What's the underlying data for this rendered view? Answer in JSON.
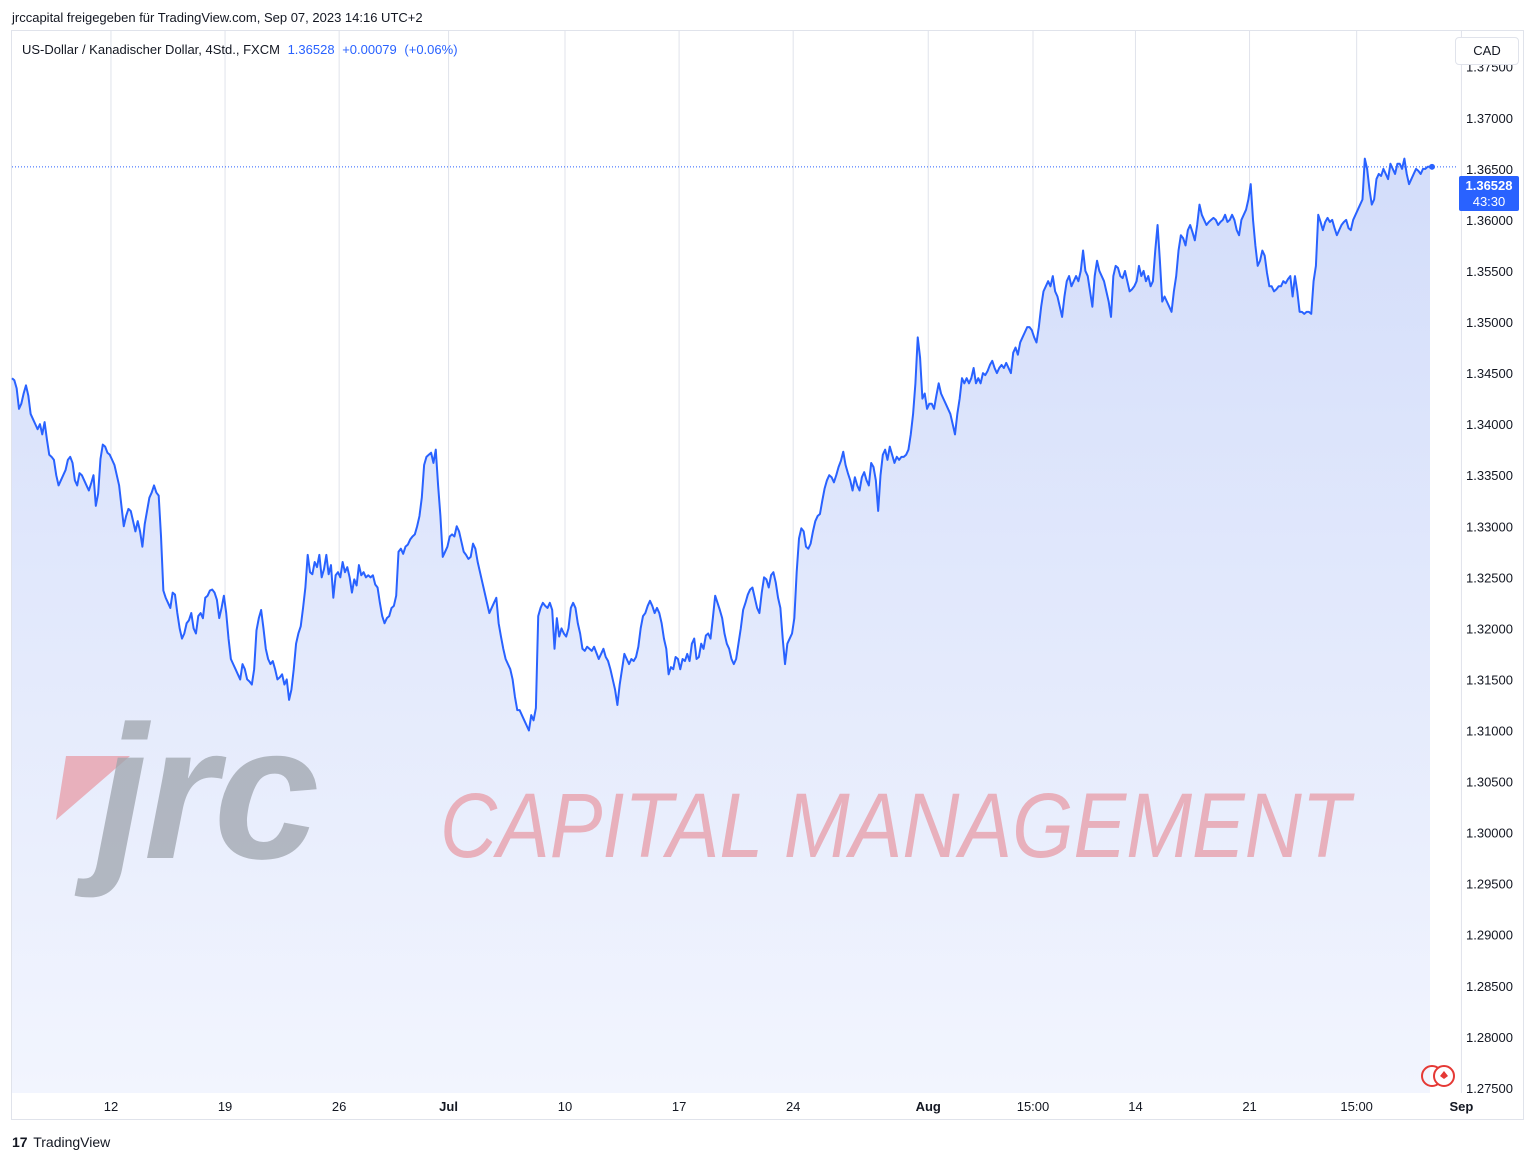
{
  "header": {
    "publish_line": "jrccapital freigegeben für TradingView.com, Sep 07, 2023 14:16 UTC+2"
  },
  "legend": {
    "symbol": "US-Dollar / Kanadischer Dollar, 4Std., FXCM",
    "last": "1.36528",
    "change": "+0.00079",
    "change_pct": "(+0.06%)"
  },
  "currency_button": "CAD",
  "price_tag": {
    "price": "1.36528",
    "countdown": "43:30"
  },
  "watermark": {
    "brand": "jrc",
    "tagline": "CAPITAL MANAGEMENT"
  },
  "footer": {
    "brand": "TradingView",
    "logo_glyph": "17"
  },
  "colors": {
    "line": "#2962ff",
    "area_top": "#d6e0fb",
    "area_bottom": "#f3f6fe",
    "grid": "#e0e3eb",
    "watermark_gray": "#9aa0a8",
    "watermark_red": "#e8a0ac"
  },
  "chart_data": {
    "type": "area",
    "title": "US-Dollar / Kanadischer Dollar, 4Std., FXCM",
    "ylabel": "CAD",
    "ylim": [
      1.2745,
      1.3785
    ],
    "y_ticks": [
      "1.37500",
      "1.37000",
      "1.36500",
      "1.36000",
      "1.35500",
      "1.35000",
      "1.34500",
      "1.34000",
      "1.33500",
      "1.33000",
      "1.32500",
      "1.32000",
      "1.31500",
      "1.31000",
      "1.30500",
      "1.30000",
      "1.29500",
      "1.29000",
      "1.28500",
      "1.28000",
      "1.27500"
    ],
    "x_ticks": [
      {
        "label": "12",
        "bold": false,
        "i": 42.5
      },
      {
        "label": "19",
        "bold": false,
        "i": 91.5
      },
      {
        "label": "26",
        "bold": false,
        "i": 140.5
      },
      {
        "label": "Jul",
        "bold": true,
        "i": 187.5
      },
      {
        "label": "10",
        "bold": false,
        "i": 237.5
      },
      {
        "label": "17",
        "bold": false,
        "i": 286.5
      },
      {
        "label": "24",
        "bold": false,
        "i": 335.5
      },
      {
        "label": "Aug",
        "bold": true,
        "i": 393.5
      },
      {
        "label": "15:00",
        "bold": false,
        "i": 438.5
      },
      {
        "label": "14",
        "bold": false,
        "i": 482.5
      },
      {
        "label": "21",
        "bold": false,
        "i": 531.5
      },
      {
        "label": "15:00",
        "bold": false,
        "i": 577.5
      },
      {
        "label": "Sep",
        "bold": true,
        "i": 622.5
      }
    ],
    "grid": true,
    "series": [
      {
        "values": [
          1.3445,
          1.3443,
          1.3435,
          1.3415,
          1.342,
          1.343,
          1.3438,
          1.3428,
          1.341,
          1.3405,
          1.34,
          1.3395,
          1.34,
          1.339,
          1.3402,
          1.3385,
          1.337,
          1.3368,
          1.3365,
          1.335,
          1.334,
          1.3345,
          1.335,
          1.3355,
          1.3365,
          1.3368,
          1.3362,
          1.3345,
          1.334,
          1.3352,
          1.335,
          1.3345,
          1.334,
          1.3335,
          1.3342,
          1.335,
          1.332,
          1.3332,
          1.3366,
          1.338,
          1.3378,
          1.3372,
          1.337,
          1.3365,
          1.336,
          1.335,
          1.334,
          1.332,
          1.33,
          1.331,
          1.3317,
          1.3315,
          1.3305,
          1.3295,
          1.3305,
          1.3295,
          1.328,
          1.3302,
          1.3315,
          1.3328,
          1.3333,
          1.334,
          1.3333,
          1.333,
          1.329,
          1.3237,
          1.323,
          1.3225,
          1.322,
          1.3235,
          1.3233,
          1.3215,
          1.32,
          1.319,
          1.3195,
          1.3205,
          1.3208,
          1.3215,
          1.32,
          1.3195,
          1.3212,
          1.3215,
          1.321,
          1.323,
          1.3232,
          1.3237,
          1.3238,
          1.3235,
          1.3228,
          1.321,
          1.322,
          1.3232,
          1.3215,
          1.319,
          1.317,
          1.3165,
          1.316,
          1.3155,
          1.315,
          1.3165,
          1.316,
          1.315,
          1.3148,
          1.3145,
          1.316,
          1.3198,
          1.321,
          1.3218,
          1.32,
          1.318,
          1.317,
          1.3165,
          1.3168,
          1.316,
          1.315,
          1.3152,
          1.3155,
          1.3145,
          1.315,
          1.313,
          1.314,
          1.316,
          1.3185,
          1.3195,
          1.3202,
          1.322,
          1.324,
          1.3272,
          1.3255,
          1.3253,
          1.3265,
          1.326,
          1.3272,
          1.325,
          1.3258,
          1.3272,
          1.3253,
          1.3262,
          1.323,
          1.3252,
          1.3255,
          1.325,
          1.3265,
          1.3255,
          1.326,
          1.325,
          1.3235,
          1.3248,
          1.3242,
          1.3262,
          1.3252,
          1.3255,
          1.325,
          1.3252,
          1.325,
          1.3252,
          1.3243,
          1.324,
          1.3225,
          1.3212,
          1.3205,
          1.321,
          1.3212,
          1.322,
          1.3222,
          1.3232,
          1.3275,
          1.3278,
          1.3273,
          1.328,
          1.3282,
          1.3287,
          1.329,
          1.3292,
          1.33,
          1.331,
          1.3328,
          1.336,
          1.3368,
          1.337,
          1.3372,
          1.3362,
          1.3375,
          1.334,
          1.331,
          1.327,
          1.3275,
          1.328,
          1.329,
          1.3292,
          1.329,
          1.33,
          1.3295,
          1.3285,
          1.3275,
          1.3272,
          1.3268,
          1.327,
          1.3283,
          1.3278,
          1.3265,
          1.3255,
          1.3245,
          1.3235,
          1.3225,
          1.3215,
          1.322,
          1.3225,
          1.323,
          1.3205,
          1.3192,
          1.318,
          1.317,
          1.3165,
          1.316,
          1.315,
          1.3133,
          1.312,
          1.312,
          1.3115,
          1.311,
          1.3105,
          1.31,
          1.3115,
          1.311,
          1.3122,
          1.3212,
          1.322,
          1.3225,
          1.3222,
          1.322,
          1.3225,
          1.3218,
          1.318,
          1.321,
          1.3192,
          1.32,
          1.3195,
          1.3192,
          1.32,
          1.322,
          1.3225,
          1.322,
          1.3205,
          1.3195,
          1.318,
          1.3178,
          1.3182,
          1.318,
          1.3178,
          1.3182,
          1.3176,
          1.317,
          1.3175,
          1.318,
          1.3172,
          1.3168,
          1.316,
          1.315,
          1.314,
          1.3125,
          1.3145,
          1.316,
          1.3175,
          1.317,
          1.3165,
          1.317,
          1.3168,
          1.3172,
          1.3182,
          1.32,
          1.3212,
          1.3215,
          1.3222,
          1.3227,
          1.3222,
          1.3215,
          1.322,
          1.3215,
          1.3205,
          1.319,
          1.318,
          1.3155,
          1.3162,
          1.316,
          1.3172,
          1.317,
          1.316,
          1.317,
          1.3168,
          1.3175,
          1.3168,
          1.3185,
          1.319,
          1.317,
          1.3172,
          1.3185,
          1.318,
          1.3193,
          1.3195,
          1.319,
          1.321,
          1.3232,
          1.3225,
          1.3218,
          1.321,
          1.3195,
          1.3185,
          1.318,
          1.317,
          1.3165,
          1.317,
          1.3185,
          1.32,
          1.3218,
          1.3225,
          1.3233,
          1.3238,
          1.324,
          1.323,
          1.322,
          1.3215,
          1.3235,
          1.325,
          1.3248,
          1.324,
          1.3252,
          1.3255,
          1.3245,
          1.323,
          1.322,
          1.319,
          1.3165,
          1.3185,
          1.319,
          1.3195,
          1.321,
          1.3255,
          1.3288,
          1.3298,
          1.3295,
          1.328,
          1.3278,
          1.3283,
          1.3295,
          1.3305,
          1.331,
          1.3312,
          1.3325,
          1.3337,
          1.3345,
          1.335,
          1.3348,
          1.3343,
          1.335,
          1.3358,
          1.3364,
          1.3373,
          1.336,
          1.3352,
          1.3345,
          1.3335,
          1.3348,
          1.334,
          1.3335,
          1.3348,
          1.3353,
          1.3345,
          1.334,
          1.3362,
          1.3358,
          1.3345,
          1.3315,
          1.335,
          1.337,
          1.3375,
          1.3365,
          1.3378,
          1.337,
          1.3362,
          1.3368,
          1.3365,
          1.3368,
          1.3368,
          1.337,
          1.3375,
          1.339,
          1.341,
          1.344,
          1.3485,
          1.3465,
          1.3425,
          1.343,
          1.3415,
          1.342,
          1.342,
          1.3415,
          1.3428,
          1.344,
          1.343,
          1.3425,
          1.342,
          1.3415,
          1.341,
          1.34,
          1.339,
          1.341,
          1.3425,
          1.3445,
          1.344,
          1.3445,
          1.344,
          1.3445,
          1.3455,
          1.344,
          1.3445,
          1.344,
          1.345,
          1.3448,
          1.3452,
          1.3458,
          1.3462,
          1.3455,
          1.345,
          1.3455,
          1.3458,
          1.3455,
          1.346,
          1.3455,
          1.345,
          1.347,
          1.3475,
          1.3468,
          1.348,
          1.3485,
          1.349,
          1.3495,
          1.3495,
          1.3492,
          1.3485,
          1.348,
          1.3495,
          1.3515,
          1.353,
          1.3535,
          1.354,
          1.3535,
          1.3545,
          1.353,
          1.3525,
          1.3515,
          1.3505,
          1.3525,
          1.354,
          1.3545,
          1.3535,
          1.354,
          1.3545,
          1.354,
          1.355,
          1.357,
          1.355,
          1.3545,
          1.353,
          1.3515,
          1.3545,
          1.356,
          1.355,
          1.3545,
          1.354,
          1.353,
          1.352,
          1.3505,
          1.3545,
          1.3555,
          1.3553,
          1.3545,
          1.3543,
          1.355,
          1.354,
          1.353,
          1.3532,
          1.3535,
          1.354,
          1.3555,
          1.3545,
          1.355,
          1.354,
          1.3545,
          1.3535,
          1.354,
          1.357,
          1.3595,
          1.356,
          1.352,
          1.3525,
          1.352,
          1.3515,
          1.351,
          1.353,
          1.3545,
          1.357,
          1.3585,
          1.3582,
          1.3575,
          1.359,
          1.3595,
          1.3588,
          1.358,
          1.3595,
          1.3615,
          1.3605,
          1.36,
          1.3595,
          1.3598,
          1.36,
          1.3602,
          1.36,
          1.3595,
          1.3598,
          1.36,
          1.3605,
          1.3598,
          1.36,
          1.3605,
          1.36,
          1.359,
          1.3585,
          1.36,
          1.3605,
          1.361,
          1.362,
          1.3635,
          1.36,
          1.3575,
          1.3555,
          1.356,
          1.357,
          1.3565,
          1.3548,
          1.3535,
          1.3535,
          1.353,
          1.3532,
          1.3535,
          1.3535,
          1.354,
          1.3538,
          1.3542,
          1.3545,
          1.3525,
          1.3545,
          1.353,
          1.351,
          1.351,
          1.3508,
          1.351,
          1.351,
          1.3508,
          1.354,
          1.3555,
          1.3605,
          1.3598,
          1.359,
          1.3598,
          1.3602,
          1.3598,
          1.36,
          1.3592,
          1.3585,
          1.359,
          1.3595,
          1.3598,
          1.36,
          1.3592,
          1.359,
          1.36,
          1.3605,
          1.361,
          1.3615,
          1.362,
          1.366,
          1.365,
          1.363,
          1.3615,
          1.362,
          1.364,
          1.3645,
          1.3643,
          1.365,
          1.3645,
          1.364,
          1.3655,
          1.365,
          1.3645,
          1.3655,
          1.3655,
          1.365,
          1.366,
          1.3645,
          1.3635,
          1.364,
          1.3645,
          1.365,
          1.3648,
          1.3645,
          1.365,
          1.365,
          1.3652,
          1.3652
        ]
      }
    ]
  }
}
